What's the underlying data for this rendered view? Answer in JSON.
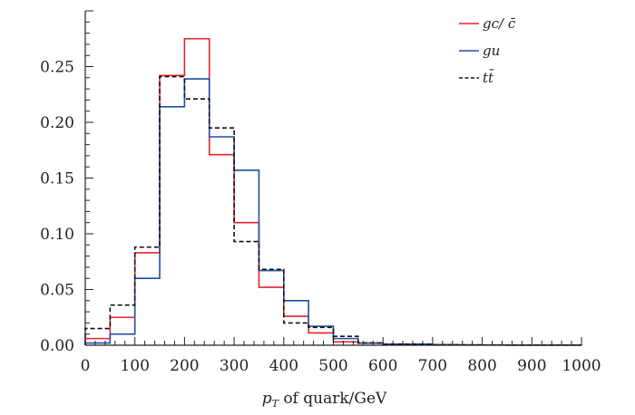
{
  "chart_data": {
    "type": "histogram-step",
    "title": "",
    "xlabel_main": "p",
    "xlabel_sub": "T",
    "xlabel_rest": " of quark/GeV",
    "ylabel": "",
    "xlim": [
      0,
      1000
    ],
    "ylim": [
      0,
      0.3
    ],
    "x_ticks": [
      0,
      100,
      200,
      300,
      400,
      500,
      600,
      700,
      800,
      900,
      1000
    ],
    "x_tick_labels": [
      "0",
      "100",
      "200",
      "300",
      "400",
      "500",
      "600",
      "700",
      "800",
      "900",
      "1000"
    ],
    "y_ticks": [
      0,
      0.05,
      0.1,
      0.15,
      0.2,
      0.25
    ],
    "y_tick_labels": [
      "0.00",
      "0.05",
      "0.10",
      "0.15",
      "0.20",
      "0.25"
    ],
    "bin_edges": [
      0,
      50,
      100,
      150,
      200,
      250,
      300,
      350,
      400,
      450,
      500,
      550,
      600,
      650,
      700,
      750,
      800,
      850,
      900,
      950,
      1000
    ],
    "grid": false,
    "legend_position": "top-right",
    "series": [
      {
        "name": "gc/ c̄",
        "color": "#e8232a",
        "dash": "solid",
        "values": [
          0.006,
          0.025,
          0.083,
          0.242,
          0.275,
          0.171,
          0.11,
          0.052,
          0.026,
          0.011,
          0.003,
          0.002,
          0.001,
          0.001,
          0.0005,
          0.0003,
          0.0002,
          0.0001,
          0.0001,
          0.0001
        ]
      },
      {
        "name": "gu",
        "color": "#1f4fa3",
        "dash": "solid",
        "values": [
          0.002,
          0.01,
          0.06,
          0.214,
          0.239,
          0.187,
          0.157,
          0.067,
          0.04,
          0.017,
          0.006,
          0.002,
          0.001,
          0.001,
          0.0005,
          0.0003,
          0.0002,
          0.0001,
          0.0001,
          0.0001
        ]
      },
      {
        "name": "tt̄",
        "color": "#111111",
        "dash": "dashed",
        "values": [
          0.015,
          0.036,
          0.088,
          0.241,
          0.221,
          0.195,
          0.093,
          0.068,
          0.02,
          0.016,
          0.008,
          0.002,
          0.001,
          0.001,
          0.0005,
          0.0003,
          0.0002,
          0.0001,
          0.0001,
          0.0001
        ]
      }
    ]
  }
}
